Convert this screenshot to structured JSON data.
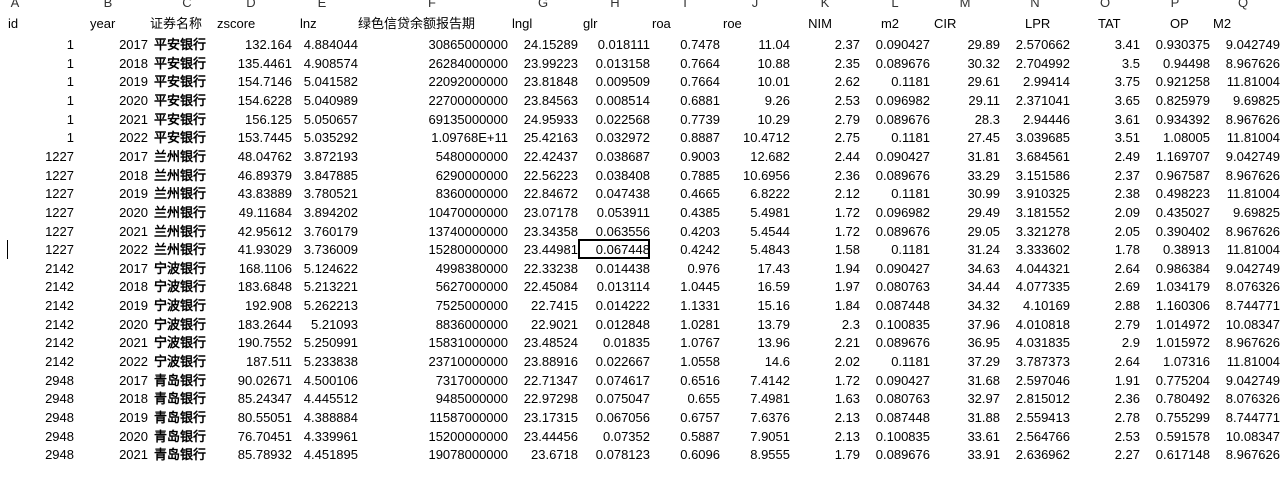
{
  "column_letters": [
    "A",
    "B",
    "C",
    "D",
    "E",
    "F",
    "G",
    "H",
    "I",
    "J",
    "K",
    "L",
    "M",
    "N",
    "O",
    "P",
    "Q"
  ],
  "headers": [
    "id",
    "year",
    "证券名称",
    "zscore",
    "lnz",
    "绿色信贷余额报告期",
    "lngl",
    "glr",
    "roa",
    "roe",
    "NIM",
    "m2",
    "CIR",
    "LPR",
    "TAT",
    "OP",
    "M2"
  ],
  "rows": [
    [
      "1",
      "2017",
      "平安银行",
      "132.164",
      "4.884044",
      "30865000000",
      "24.15289",
      "0.018111",
      "0.7478",
      "11.04",
      "2.37",
      "0.090427",
      "29.89",
      "2.570662",
      "3.41",
      "0.930375",
      "9.042749"
    ],
    [
      "1",
      "2018",
      "平安银行",
      "135.4461",
      "4.908574",
      "26284000000",
      "23.99223",
      "0.013158",
      "0.7664",
      "10.88",
      "2.35",
      "0.089676",
      "30.32",
      "2.704992",
      "3.5",
      "0.94498",
      "8.967626"
    ],
    [
      "1",
      "2019",
      "平安银行",
      "154.7146",
      "5.041582",
      "22092000000",
      "23.81848",
      "0.009509",
      "0.7664",
      "10.01",
      "2.62",
      "0.1181",
      "29.61",
      "2.99414",
      "3.75",
      "0.921258",
      "11.81004"
    ],
    [
      "1",
      "2020",
      "平安银行",
      "154.6228",
      "5.040989",
      "22700000000",
      "23.84563",
      "0.008514",
      "0.6881",
      "9.26",
      "2.53",
      "0.096982",
      "29.11",
      "2.371041",
      "3.65",
      "0.825979",
      "9.69825"
    ],
    [
      "1",
      "2021",
      "平安银行",
      "156.125",
      "5.050657",
      "69135000000",
      "24.95933",
      "0.022568",
      "0.7739",
      "10.29",
      "2.79",
      "0.089676",
      "28.3",
      "2.94446",
      "3.61",
      "0.934392",
      "8.967626"
    ],
    [
      "1",
      "2022",
      "平安银行",
      "153.7445",
      "5.035292",
      "1.09768E+11",
      "25.42163",
      "0.032972",
      "0.8887",
      "10.4712",
      "2.75",
      "0.1181",
      "27.45",
      "3.039685",
      "3.51",
      "1.08005",
      "11.81004"
    ],
    [
      "1227",
      "2017",
      "兰州银行",
      "48.04762",
      "3.872193",
      "5480000000",
      "22.42437",
      "0.038687",
      "0.9003",
      "12.682",
      "2.44",
      "0.090427",
      "31.81",
      "3.684561",
      "2.49",
      "1.169707",
      "9.042749"
    ],
    [
      "1227",
      "2018",
      "兰州银行",
      "46.89379",
      "3.847885",
      "6290000000",
      "22.56223",
      "0.038408",
      "0.7885",
      "10.6956",
      "2.36",
      "0.089676",
      "33.29",
      "3.151586",
      "2.37",
      "0.967587",
      "8.967626"
    ],
    [
      "1227",
      "2019",
      "兰州银行",
      "43.83889",
      "3.780521",
      "8360000000",
      "22.84672",
      "0.047438",
      "0.4665",
      "6.8222",
      "2.12",
      "0.1181",
      "30.99",
      "3.910325",
      "2.38",
      "0.498223",
      "11.81004"
    ],
    [
      "1227",
      "2020",
      "兰州银行",
      "49.11684",
      "3.894202",
      "10470000000",
      "23.07178",
      "0.053911",
      "0.4385",
      "5.4981",
      "1.72",
      "0.096982",
      "29.49",
      "3.181552",
      "2.09",
      "0.435027",
      "9.69825"
    ],
    [
      "1227",
      "2021",
      "兰州银行",
      "42.95612",
      "3.760179",
      "13740000000",
      "23.34358",
      "0.063556",
      "0.4203",
      "5.4544",
      "1.72",
      "0.089676",
      "29.05",
      "3.321278",
      "2.05",
      "0.390402",
      "8.967626"
    ],
    [
      "1227",
      "2022",
      "兰州银行",
      "41.93029",
      "3.736009",
      "15280000000",
      "23.44981",
      "0.067448",
      "0.4242",
      "5.4843",
      "1.58",
      "0.1181",
      "31.24",
      "3.333602",
      "1.78",
      "0.38913",
      "11.81004"
    ],
    [
      "2142",
      "2017",
      "宁波银行",
      "168.1106",
      "5.124622",
      "4998380000",
      "22.33238",
      "0.014438",
      "0.976",
      "17.43",
      "1.94",
      "0.090427",
      "34.63",
      "4.044321",
      "2.64",
      "0.986384",
      "9.042749"
    ],
    [
      "2142",
      "2018",
      "宁波银行",
      "183.6848",
      "5.213221",
      "5627000000",
      "22.45084",
      "0.013114",
      "1.0445",
      "16.59",
      "1.97",
      "0.080763",
      "34.44",
      "4.077335",
      "2.69",
      "1.034179",
      "8.076326"
    ],
    [
      "2142",
      "2019",
      "宁波银行",
      "192.908",
      "5.262213",
      "7525000000",
      "22.7415",
      "0.014222",
      "1.1331",
      "15.16",
      "1.84",
      "0.087448",
      "34.32",
      "4.10169",
      "2.88",
      "1.160306",
      "8.744771"
    ],
    [
      "2142",
      "2020",
      "宁波银行",
      "183.2644",
      "5.21093",
      "8836000000",
      "22.9021",
      "0.012848",
      "1.0281",
      "13.79",
      "2.3",
      "0.100835",
      "37.96",
      "4.010818",
      "2.79",
      "1.014972",
      "10.08347"
    ],
    [
      "2142",
      "2021",
      "宁波银行",
      "190.7552",
      "5.250991",
      "15831000000",
      "23.48524",
      "0.01835",
      "1.0767",
      "13.96",
      "2.21",
      "0.089676",
      "36.95",
      "4.031835",
      "2.9",
      "1.015972",
      "8.967626"
    ],
    [
      "2142",
      "2022",
      "宁波银行",
      "187.511",
      "5.233838",
      "23710000000",
      "23.88916",
      "0.022667",
      "1.0558",
      "14.6",
      "2.02",
      "0.1181",
      "37.29",
      "3.787373",
      "2.64",
      "1.07316",
      "11.81004"
    ],
    [
      "2948",
      "2017",
      "青岛银行",
      "90.02671",
      "4.500106",
      "7317000000",
      "22.71347",
      "0.074617",
      "0.6516",
      "7.4142",
      "1.72",
      "0.090427",
      "31.68",
      "2.597046",
      "1.91",
      "0.775204",
      "9.042749"
    ],
    [
      "2948",
      "2018",
      "青岛银行",
      "85.24347",
      "4.445512",
      "9485000000",
      "22.97298",
      "0.075047",
      "0.655",
      "7.4981",
      "1.63",
      "0.080763",
      "32.97",
      "2.815012",
      "2.36",
      "0.780492",
      "8.076326"
    ],
    [
      "2948",
      "2019",
      "青岛银行",
      "80.55051",
      "4.388884",
      "11587000000",
      "23.17315",
      "0.067056",
      "0.6757",
      "7.6376",
      "2.13",
      "0.087448",
      "31.88",
      "2.559413",
      "2.78",
      "0.755299",
      "8.744771"
    ],
    [
      "2948",
      "2020",
      "青岛银行",
      "76.70451",
      "4.339961",
      "15200000000",
      "23.44456",
      "0.07352",
      "0.5887",
      "7.9051",
      "2.13",
      "0.100835",
      "33.61",
      "2.564766",
      "2.53",
      "0.591578",
      "10.08347"
    ],
    [
      "2948",
      "2021",
      "青岛银行",
      "85.78932",
      "4.451895",
      "19078000000",
      "23.6718",
      "0.078123",
      "0.6096",
      "8.9555",
      "1.79",
      "0.089676",
      "33.91",
      "2.636962",
      "2.27",
      "0.617148",
      "8.967626"
    ]
  ]
}
